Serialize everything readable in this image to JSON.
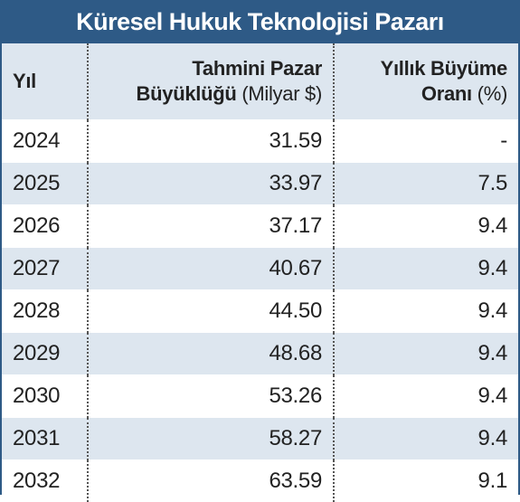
{
  "title": "Küresel Hukuk Teknolojisi Pazarı",
  "table": {
    "columns": [
      {
        "title": "Yıl"
      },
      {
        "title_line1": "Tahmini Pazar",
        "title_line2": "Büyüklüğü",
        "unit": "(Milyar $)"
      },
      {
        "title_line1": "Yıllık Büyüme",
        "title_line2": "Oranı",
        "unit": "(%)"
      }
    ],
    "rows": [
      [
        "2024",
        "31.59",
        "-"
      ],
      [
        "2025",
        "33.97",
        "7.5"
      ],
      [
        "2026",
        "37.17",
        "9.4"
      ],
      [
        "2027",
        "40.67",
        "9.4"
      ],
      [
        "2028",
        "44.50",
        "9.4"
      ],
      [
        "2029",
        "48.68",
        "9.4"
      ],
      [
        "2030",
        "53.26",
        "9.4"
      ],
      [
        "2031",
        "58.27",
        "9.4"
      ],
      [
        "2032",
        "63.59",
        "9.1"
      ]
    ]
  }
}
